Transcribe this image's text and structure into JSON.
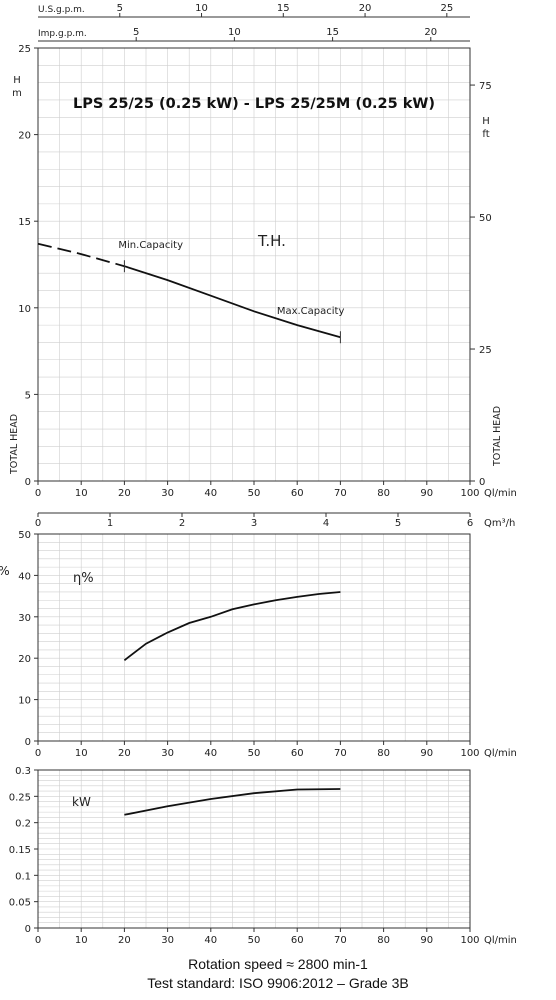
{
  "footer": {
    "speed": "Rotation speed ≈ 2800 min-1",
    "standard": "Test standard: ISO 9906:2012 – Grade 3B"
  },
  "chart_data": [
    {
      "id": "head",
      "type": "line",
      "title": "LPS 25/25 (0.25 kW) - LPS 25/25M (0.25 kW)",
      "curve_label": "T.H.",
      "xlabel": "Ql/min",
      "xlim": [
        0,
        100
      ],
      "xticks": [
        0,
        10,
        20,
        30,
        40,
        50,
        60,
        70,
        80,
        90,
        100
      ],
      "ylim": [
        0,
        25
      ],
      "yticks": [
        0,
        5,
        10,
        15,
        20,
        25
      ],
      "ylabel_unit": "m",
      "ylabel_letter": "H",
      "ylabel_side": "TOTAL HEAD",
      "y2_unit": "ft",
      "y2_letter": "H",
      "y2_label": "TOTAL HEAD",
      "y2ticks": [
        0,
        25,
        50,
        75
      ],
      "top_axes": [
        {
          "label": "U.S.g.p.m.",
          "ticks": [
            5,
            10,
            15,
            20,
            25
          ]
        },
        {
          "label": "Imp.g.p.m.",
          "ticks": [
            5,
            10,
            15,
            20
          ]
        }
      ],
      "bottom_axis2": {
        "label": "Qm³/h",
        "ticks": [
          0,
          1,
          2,
          3,
          4,
          5,
          6
        ]
      },
      "annotations": [
        {
          "text": "Min.Capacity",
          "x": 20
        },
        {
          "text": "Max.Capacity",
          "x": 70
        }
      ],
      "series": [
        {
          "style": "dashed",
          "x": [
            0,
            10,
            20
          ],
          "y": [
            13.7,
            13.1,
            12.4
          ]
        },
        {
          "style": "solid",
          "x": [
            20,
            30,
            40,
            50,
            60,
            70
          ],
          "y": [
            12.4,
            11.6,
            10.7,
            9.8,
            9.0,
            8.3
          ]
        }
      ]
    },
    {
      "id": "efficiency",
      "type": "line",
      "curve_label": "η%",
      "ylabel": "%",
      "xlabel": "Ql/min",
      "xlim": [
        0,
        100
      ],
      "xticks": [
        0,
        10,
        20,
        30,
        40,
        50,
        60,
        70,
        80,
        90,
        100
      ],
      "ylim": [
        0,
        50
      ],
      "yticks": [
        0,
        10,
        20,
        30,
        40,
        50
      ],
      "series": [
        {
          "x": [
            20,
            25,
            30,
            35,
            40,
            45,
            50,
            55,
            60,
            65,
            70
          ],
          "y": [
            19.5,
            23.5,
            26.2,
            28.5,
            30.0,
            31.8,
            33.0,
            34.0,
            34.8,
            35.5,
            36.0
          ]
        }
      ]
    },
    {
      "id": "power",
      "type": "line",
      "curve_label": "kW",
      "xlabel": "Ql/min",
      "xlim": [
        0,
        100
      ],
      "xticks": [
        0,
        10,
        20,
        30,
        40,
        50,
        60,
        70,
        80,
        90,
        100
      ],
      "ylim": [
        0,
        0.3
      ],
      "yticks": [
        0,
        0.05,
        0.1,
        0.15,
        0.2,
        0.25,
        0.3
      ],
      "ytick_labels": [
        "0",
        "0.05",
        "0.1",
        "0.15",
        "0.2",
        "0.25",
        "0.3"
      ],
      "series": [
        {
          "x": [
            20,
            30,
            40,
            50,
            60,
            70
          ],
          "y": [
            0.215,
            0.231,
            0.245,
            0.256,
            0.263,
            0.264
          ]
        }
      ]
    }
  ]
}
